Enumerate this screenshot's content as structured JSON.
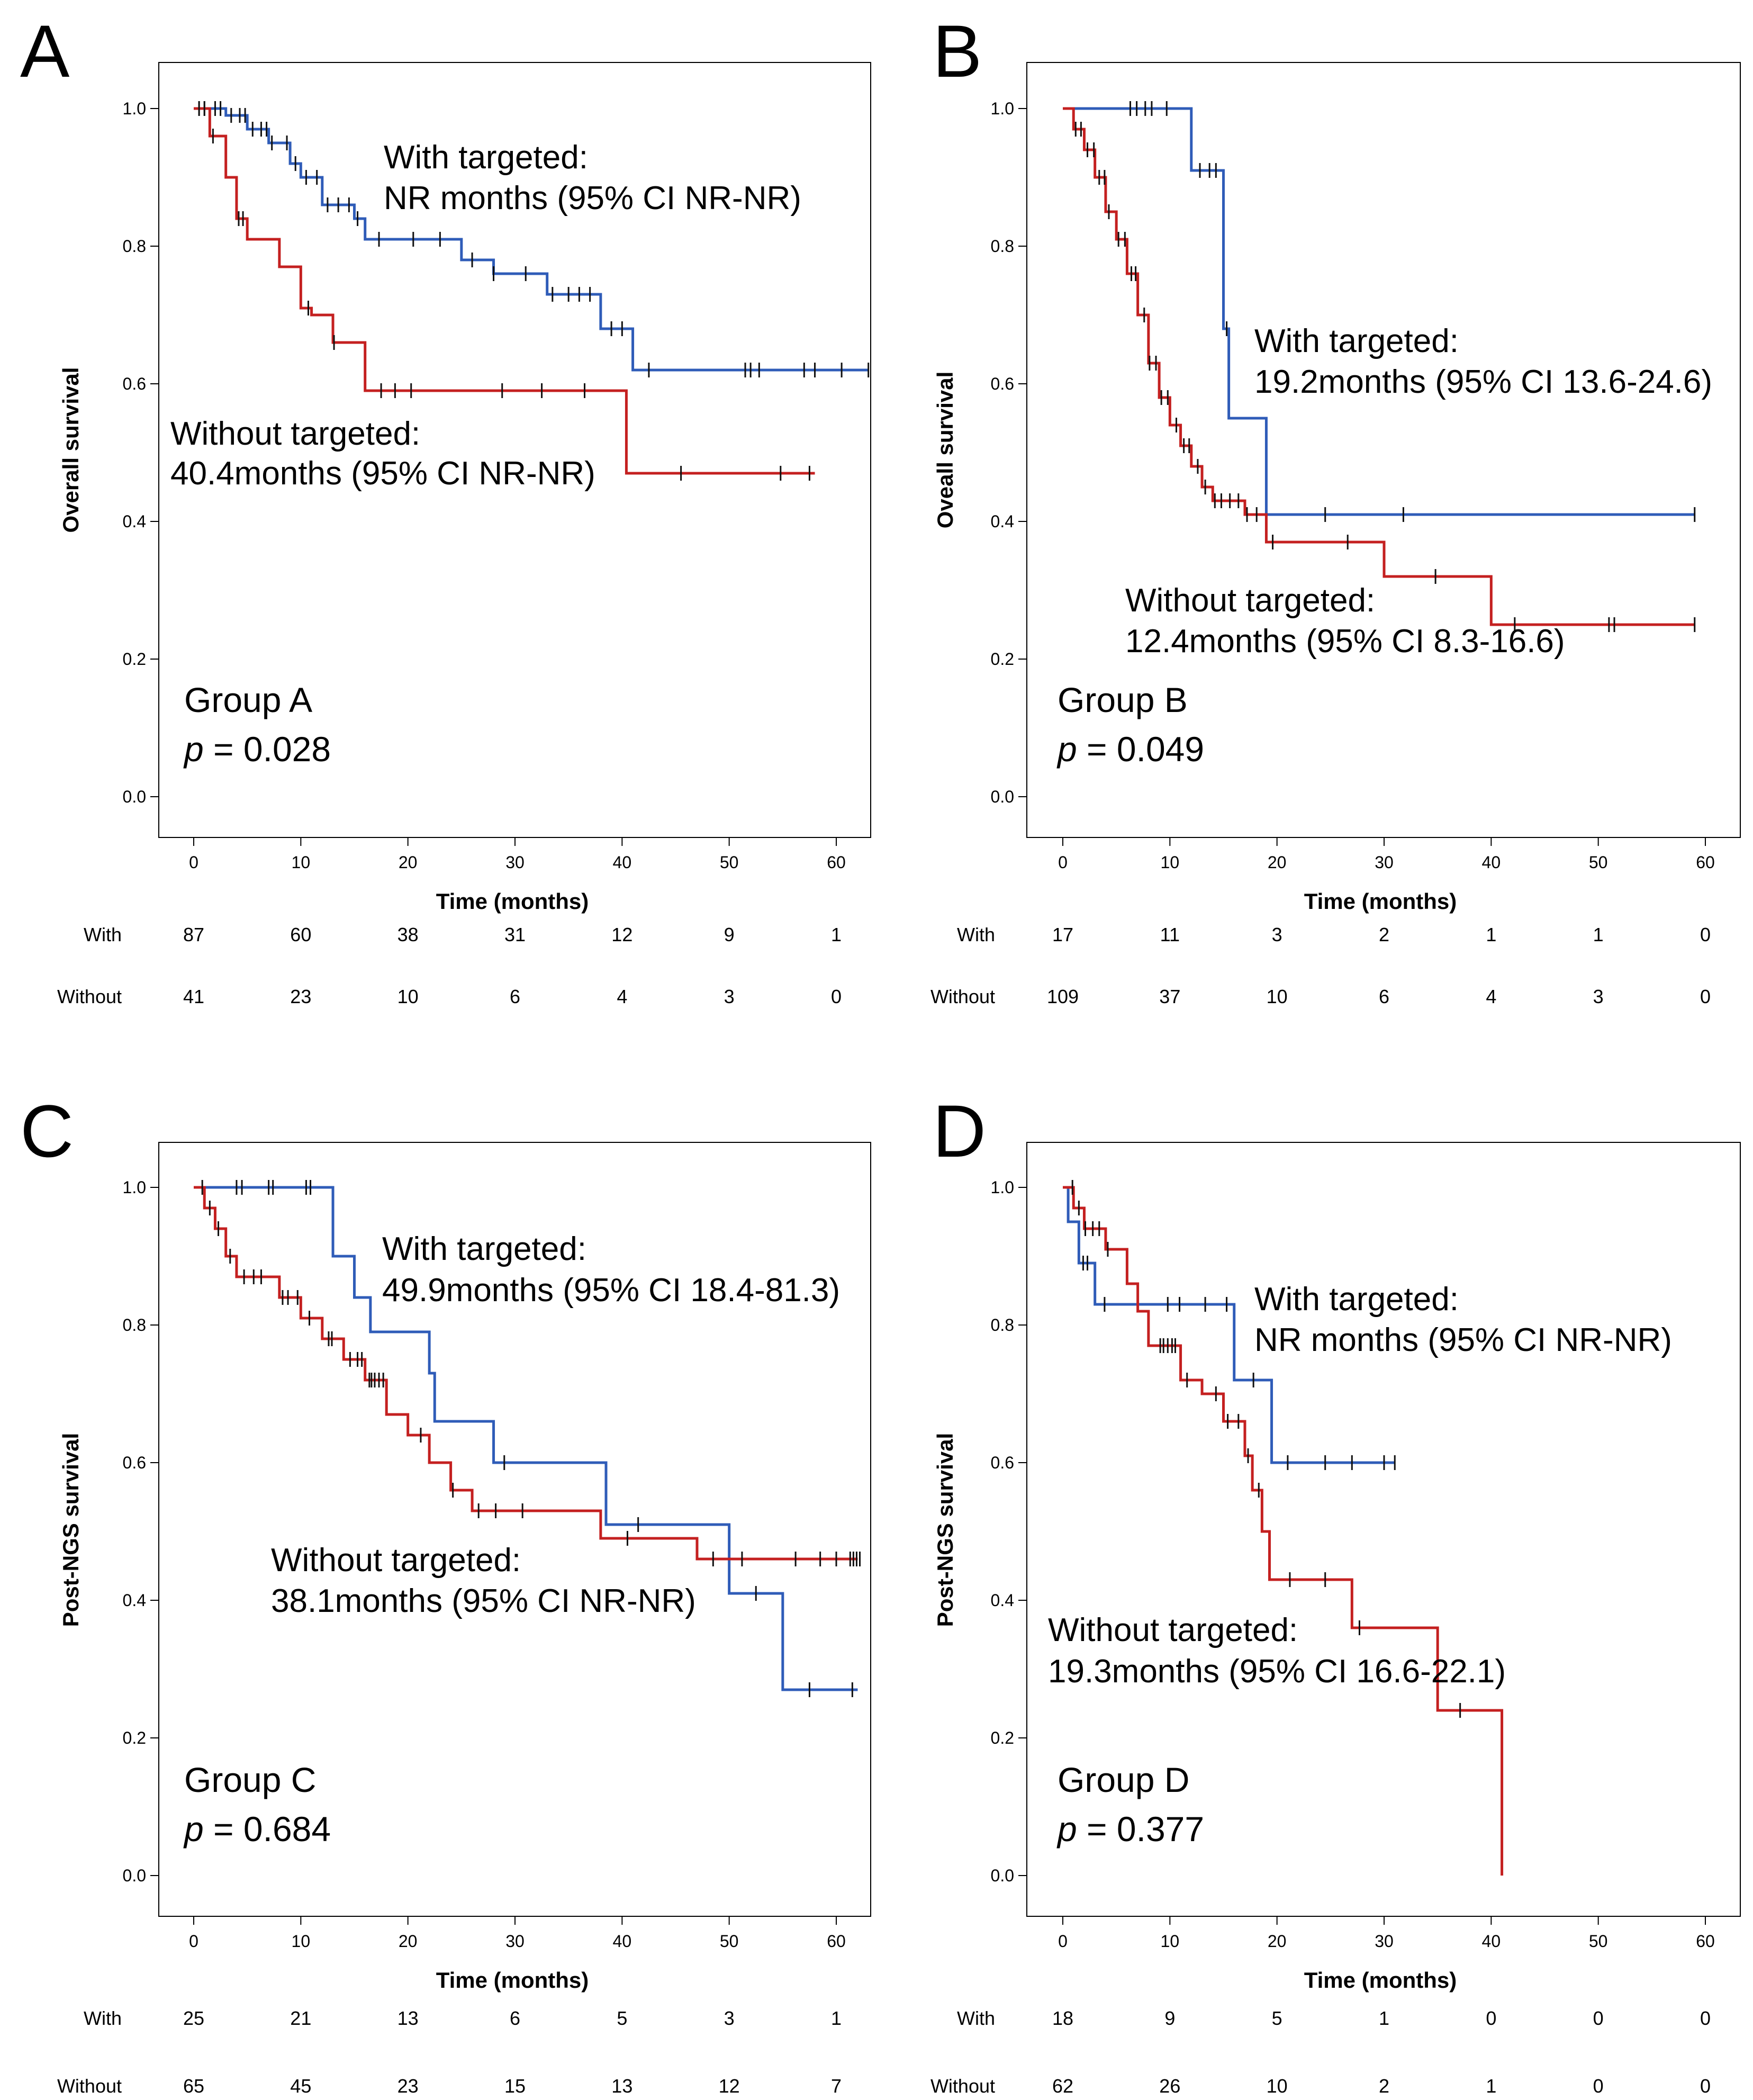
{
  "figure_title": "Kaplan-Meier survival curves, Groups A-D",
  "colors": {
    "with": "#2f5cb8",
    "without": "#c42020",
    "censor": "#111111",
    "frame": "#000000"
  },
  "chart_data": [
    {
      "panel": "A",
      "type": "line",
      "subtype": "kaplan-meier",
      "ylabel": "Overall survival",
      "xlabel": "Time (months)",
      "xlim": [
        0,
        63
      ],
      "ylim": [
        0,
        1
      ],
      "x_ticks": [
        "0",
        "10",
        "20",
        "30",
        "40",
        "50",
        "60"
      ],
      "y_ticks": [
        "0.0",
        "0.2",
        "0.4",
        "0.6",
        "0.8",
        "1.0"
      ],
      "group_label": "Group A",
      "p_label": "p",
      "p_value": "= 0.028",
      "annotations": {
        "with_line1": "With targeted:",
        "with_line2": "NR months (95% CI NR-NR)",
        "without_line1": "Without targeted:",
        "without_line2": "40.4months (95% CI NR-NR)"
      },
      "series": [
        {
          "name": "With targeted",
          "color_key": "with",
          "x": [
            0,
            3,
            5,
            7,
            9,
            10,
            12,
            15,
            16,
            20,
            25,
            28,
            33,
            38,
            40,
            41,
            63
          ],
          "y": [
            1.0,
            0.99,
            0.97,
            0.95,
            0.92,
            0.9,
            0.86,
            0.84,
            0.81,
            0.81,
            0.78,
            0.76,
            0.73,
            0.68,
            0.68,
            0.62,
            0.62
          ],
          "censor_x": [
            0.5,
            1,
            2,
            2.5,
            3.5,
            4.3,
            4.8,
            5.5,
            6.3,
            6.8,
            7.3,
            8.7,
            9.5,
            10.5,
            11.5,
            12.5,
            13.5,
            14.5,
            15.3,
            17.3,
            20.5,
            23,
            26,
            28,
            31,
            33.5,
            35,
            36,
            37,
            39,
            40,
            42.5,
            51.5,
            52,
            52.8,
            57,
            58,
            60.5,
            63
          ]
        },
        {
          "name": "Without targeted",
          "color_key": "without",
          "x": [
            0,
            1.5,
            3,
            4,
            5,
            8,
            10,
            11,
            13,
            16,
            20,
            40.4,
            58
          ],
          "y": [
            1.0,
            0.96,
            0.9,
            0.84,
            0.81,
            0.77,
            0.71,
            0.7,
            0.66,
            0.59,
            0.59,
            0.47,
            0.47
          ],
          "censor_x": [
            0.5,
            1,
            1.8,
            4.2,
            4.6,
            10.7,
            13.1,
            17.5,
            18.8,
            20.3,
            28.8,
            32.5,
            36.5,
            45.5,
            54.8,
            57.5
          ]
        }
      ],
      "risk_table": {
        "rows": [
          {
            "label": "With",
            "values": [
              "87",
              "60",
              "38",
              "31",
              "12",
              "9",
              "1"
            ]
          },
          {
            "label": "Without",
            "values": [
              "41",
              "23",
              "10",
              "6",
              "4",
              "3",
              "0"
            ]
          }
        ]
      }
    },
    {
      "panel": "B",
      "type": "line",
      "subtype": "kaplan-meier",
      "ylabel": "Oveall survival",
      "xlabel": "Time (months)",
      "xlim": [
        0,
        61
      ],
      "ylim": [
        0,
        1
      ],
      "x_ticks": [
        "0",
        "10",
        "20",
        "30",
        "40",
        "50",
        "60"
      ],
      "y_ticks": [
        "0.0",
        "0.2",
        "0.4",
        "0.6",
        "0.8",
        "1.0"
      ],
      "group_label": "Group B",
      "p_label": "p",
      "p_value": "= 0.049",
      "annotations": {
        "with_line1": "With targeted:",
        "with_line2": "19.2months (95% CI 13.6-24.6)",
        "without_line1": "Without targeted:",
        "without_line2": "12.4months (95% CI 8.3-16.6)"
      },
      "series": [
        {
          "name": "With targeted",
          "color_key": "with",
          "x": [
            0,
            12,
            15,
            15.5,
            19,
            59
          ],
          "y": [
            1.0,
            0.91,
            0.68,
            0.55,
            0.41,
            0.41
          ],
          "censor_x": [
            6.3,
            6.9,
            7.7,
            8.3,
            9.7,
            12.8,
            13.7,
            14.3,
            15.3,
            24.5,
            31.8,
            59
          ]
        },
        {
          "name": "Without targeted",
          "color_key": "without",
          "x": [
            0,
            1,
            2,
            3,
            4,
            5,
            6,
            7,
            8,
            9,
            10,
            11,
            12,
            13,
            14,
            17,
            19,
            30,
            40,
            59
          ],
          "y": [
            1.0,
            0.97,
            0.94,
            0.9,
            0.85,
            0.81,
            0.76,
            0.7,
            0.63,
            0.58,
            0.54,
            0.51,
            0.48,
            0.45,
            0.43,
            0.41,
            0.37,
            0.32,
            0.25,
            0.25
          ],
          "censor_x": [
            1.2,
            1.7,
            2.3,
            2.9,
            3.4,
            3.9,
            4.3,
            5.2,
            5.8,
            6.4,
            6.8,
            7.6,
            8.1,
            8.7,
            9.2,
            9.8,
            10.6,
            11.3,
            11.8,
            12.6,
            13.3,
            14.2,
            14.8,
            15.6,
            16.4,
            17.2,
            18.1,
            19.6,
            26.6,
            34.8,
            42.2,
            51,
            51.5,
            59
          ]
        }
      ],
      "risk_table": {
        "rows": [
          {
            "label": "With",
            "values": [
              "17",
              "11",
              "3",
              "2",
              "1",
              "1",
              "0"
            ]
          },
          {
            "label": "Without",
            "values": [
              "109",
              "37",
              "10",
              "6",
              "4",
              "3",
              "0"
            ]
          }
        ]
      }
    },
    {
      "panel": "C",
      "type": "line",
      "subtype": "kaplan-meier",
      "ylabel": "Post-NGS survival",
      "xlabel": "Time (months)",
      "xlim": [
        0,
        63
      ],
      "ylim": [
        0,
        1
      ],
      "x_ticks": [
        "0",
        "10",
        "20",
        "30",
        "40",
        "50",
        "60"
      ],
      "y_ticks": [
        "0.0",
        "0.2",
        "0.4",
        "0.6",
        "0.8",
        "1.0"
      ],
      "group_label": "Group C",
      "p_label": "p",
      "p_value": "= 0.684",
      "annotations": {
        "with_line1": "With targeted:",
        "with_line2": "49.9months (95% CI 18.4-81.3)",
        "without_line1": "Without targeted:",
        "without_line2": "38.1months (95% CI NR-NR)"
      },
      "series": [
        {
          "name": "With targeted",
          "color_key": "with",
          "x": [
            0,
            13,
            15,
            16.5,
            22,
            22.5,
            28,
            38.5,
            50,
            50.5,
            55,
            62
          ],
          "y": [
            1.0,
            0.9,
            0.84,
            0.79,
            0.73,
            0.66,
            0.6,
            0.51,
            0.41,
            0.41,
            0.27,
            0.27
          ],
          "censor_x": [
            4,
            4.5,
            7,
            7.4,
            10.5,
            10.9,
            29,
            41.5,
            52.5,
            57.5,
            61.5
          ]
        },
        {
          "name": "Without targeted",
          "color_key": "without",
          "x": [
            0,
            1,
            2,
            3,
            4,
            8,
            10,
            12,
            14,
            16,
            18,
            20,
            22,
            24,
            26,
            28,
            38,
            47,
            62
          ],
          "y": [
            1.0,
            0.97,
            0.94,
            0.9,
            0.87,
            0.84,
            0.81,
            0.78,
            0.75,
            0.72,
            0.67,
            0.64,
            0.6,
            0.56,
            0.53,
            0.53,
            0.49,
            0.46,
            0.46
          ],
          "censor_x": [
            0.8,
            1.5,
            2.3,
            3.4,
            4.7,
            5.6,
            6.3,
            8.3,
            8.8,
            9.7,
            10.8,
            12.6,
            12.9,
            14.6,
            15.3,
            15.7,
            16.4,
            16.6,
            16.9,
            17.3,
            17.7,
            21.2,
            24.2,
            26.6,
            28.2,
            30.7,
            40.5,
            48.5,
            51.2,
            56.2,
            58.5,
            60,
            61.3,
            61.6,
            61.9,
            62.2
          ]
        }
      ],
      "risk_table": {
        "rows": [
          {
            "label": "With",
            "values": [
              "25",
              "21",
              "13",
              "6",
              "5",
              "3",
              "1"
            ]
          },
          {
            "label": "Without",
            "values": [
              "65",
              "45",
              "23",
              "15",
              "13",
              "12",
              "7"
            ]
          }
        ]
      }
    },
    {
      "panel": "D",
      "type": "line",
      "subtype": "kaplan-meier",
      "ylabel": "Post-NGS survival",
      "xlabel": "Time (months)",
      "xlim": [
        0,
        61
      ],
      "ylim": [
        0,
        1
      ],
      "x_ticks": [
        "0",
        "10",
        "20",
        "30",
        "40",
        "50",
        "60"
      ],
      "y_ticks": [
        "0.0",
        "0.2",
        "0.4",
        "0.6",
        "0.8",
        "1.0"
      ],
      "group_label": "Group D",
      "p_label": "p",
      "p_value": "= 0.377",
      "annotations": {
        "with_line1": "With targeted:",
        "with_line2": "NR months (95% CI NR-NR)",
        "without_line1": "Without targeted:",
        "without_line2": "19.3months (95% CI 16.6-22.1)"
      },
      "series": [
        {
          "name": "With targeted",
          "color_key": "with",
          "x": [
            0,
            0.5,
            1.5,
            3,
            16,
            19.5,
            31
          ],
          "y": [
            1.0,
            0.95,
            0.89,
            0.83,
            0.72,
            0.6,
            0.6
          ],
          "censor_x": [
            1.9,
            2.3,
            3.9,
            7,
            9.8,
            10.9,
            13.3,
            15.3,
            17.8,
            21,
            24.5,
            27,
            30,
            31
          ]
        },
        {
          "name": "Without targeted",
          "color_key": "without",
          "x": [
            0,
            1,
            2,
            4,
            6,
            7,
            8,
            11,
            13,
            15,
            17,
            17.7,
            18.6,
            19.3,
            27,
            35,
            41
          ],
          "y": [
            1.0,
            0.97,
            0.94,
            0.91,
            0.86,
            0.82,
            0.77,
            0.72,
            0.7,
            0.66,
            0.61,
            0.56,
            0.5,
            0.43,
            0.36,
            0.24,
            0.0
          ],
          "censor_x": [
            0.9,
            1.5,
            2.1,
            2.8,
            3.4,
            4.2,
            9.1,
            9.4,
            9.8,
            10.2,
            10.5,
            11.6,
            14.3,
            15.4,
            16.4,
            17.3,
            18.3,
            21.2,
            24.5,
            27.7,
            37.1
          ]
        }
      ],
      "risk_table": {
        "rows": [
          {
            "label": "With",
            "values": [
              "18",
              "9",
              "5",
              "1",
              "0",
              "0",
              "0"
            ]
          },
          {
            "label": "Without",
            "values": [
              "62",
              "26",
              "10",
              "2",
              "1",
              "0",
              "0"
            ]
          }
        ]
      }
    }
  ]
}
